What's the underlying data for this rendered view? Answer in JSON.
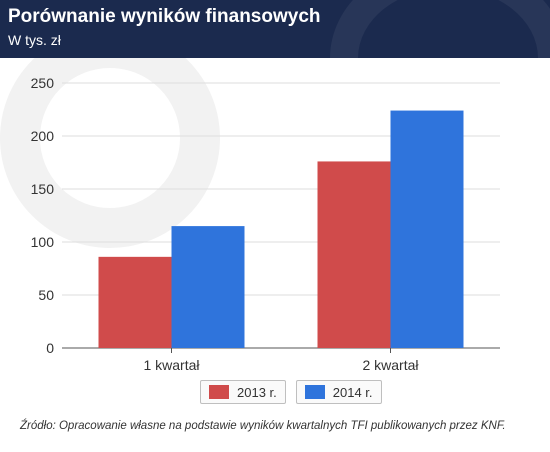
{
  "header": {
    "title": "Porównanie wyników finansowych",
    "subtitle": "W tys. zł"
  },
  "colors": {
    "header_bg": "#1b2a4e",
    "series_2013": "#d04b4b",
    "series_2014": "#2f74dc"
  },
  "chart_data": {
    "type": "bar",
    "categories": [
      "1 kwartał",
      "2 kwartał"
    ],
    "series": [
      {
        "name": "2013 r.",
        "values": [
          86,
          176
        ],
        "color": "#d04b4b"
      },
      {
        "name": "2014 r.",
        "values": [
          115,
          224
        ],
        "color": "#2f74dc"
      }
    ],
    "ylim": [
      0,
      250
    ],
    "yticks": [
      0,
      50,
      100,
      150,
      200,
      250
    ],
    "grid": true,
    "legend_position": "bottom-center"
  },
  "source_text": "Źródło: Opracowanie własne na podstawie wyników kwartalnych TFI publikowanych przez KNF."
}
